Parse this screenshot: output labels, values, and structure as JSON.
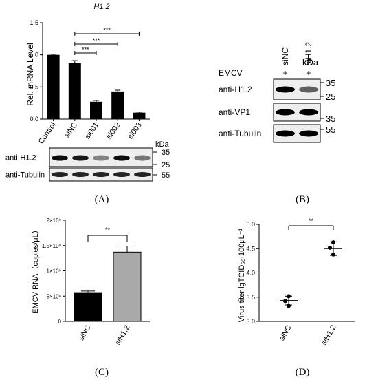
{
  "chart_data": [
    {
      "panel": "A",
      "type": "bar",
      "title": "H1.2",
      "ylabel": "Rel. mRNA Level",
      "categories": [
        "Control",
        "siNC",
        "si001",
        "si002",
        "si003"
      ],
      "values": [
        1.0,
        0.87,
        0.27,
        0.43,
        0.1
      ],
      "errors": [
        0.01,
        0.04,
        0.02,
        0.02,
        0.01
      ],
      "ylim": [
        0,
        1.5
      ],
      "yticks": [
        "0.0",
        "0.5",
        "1.0",
        "1.5"
      ],
      "significance": [
        {
          "from": "siNC",
          "to": "si001",
          "label": "***"
        },
        {
          "from": "siNC",
          "to": "si002",
          "label": "***"
        },
        {
          "from": "siNC",
          "to": "si003",
          "label": "***"
        }
      ],
      "blot": {
        "rows": [
          {
            "label": "anti-H1.2",
            "intensities": [
              0.95,
              0.9,
              0.45,
              0.95,
              0.5
            ]
          },
          {
            "label": "anti-Tubulin",
            "intensities": [
              0.85,
              0.85,
              0.85,
              0.85,
              0.85
            ]
          }
        ],
        "unit_label": "kDa",
        "markers": [
          "35",
          "25",
          "55"
        ]
      },
      "panel_label": "(A)"
    },
    {
      "panel": "B",
      "type": "blot",
      "lanes": [
        "siNC",
        "siH1.2"
      ],
      "condition_label": "EMCV",
      "condition_marks": [
        "+",
        "+"
      ],
      "unit_label": "kDa",
      "rows": [
        {
          "label": "anti-H1.2",
          "intensities": [
            1.0,
            0.6
          ],
          "markers": [
            "35",
            "25"
          ]
        },
        {
          "label": "anti-VP1",
          "intensities": [
            1.0,
            1.0
          ],
          "markers": [
            "35"
          ]
        },
        {
          "label": "anti-Tubulin",
          "intensities": [
            1.0,
            1.0
          ],
          "markers": [
            "55"
          ]
        }
      ],
      "panel_label": "(B)"
    },
    {
      "panel": "C",
      "type": "bar",
      "ylabel": "EMCV RNA（copies/μL）",
      "categories": [
        "siNC",
        "siH1.2"
      ],
      "values": [
        570000000,
        1370000000
      ],
      "errors": [
        30000000,
        120000000
      ],
      "colors": [
        "#000000",
        "#a9a9a9"
      ],
      "ylim": [
        0,
        2000000000
      ],
      "yticks": [
        "0",
        "5×10⁸",
        "1×10⁹",
        "1.5×10⁹",
        "2×10⁹"
      ],
      "significance": [
        {
          "from": "siNC",
          "to": "siH1.2",
          "label": "**"
        }
      ],
      "panel_label": "(C)"
    },
    {
      "panel": "D",
      "type": "scatter",
      "ylabel": "Virus titer lgTCID₅₀·100μL⁻¹",
      "categories": [
        "siNC",
        "siH1.2"
      ],
      "points": [
        [
          3.52,
          3.42,
          3.32
        ],
        [
          4.63,
          4.52,
          4.38
        ]
      ],
      "means": [
        3.43,
        4.5
      ],
      "sem": [
        0.09,
        0.14
      ],
      "ylim": [
        3.0,
        5.0
      ],
      "yticks": [
        "3.0",
        "3.5",
        "4.0",
        "4.5",
        "5.0"
      ],
      "significance": [
        {
          "from": "siNC",
          "to": "siH1.2",
          "label": "**"
        }
      ],
      "panel_label": "(D)"
    }
  ]
}
